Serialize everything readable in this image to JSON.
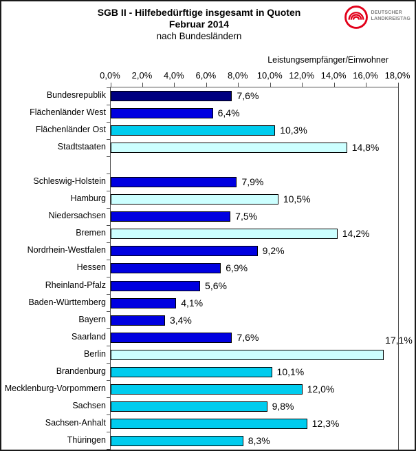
{
  "logo": {
    "line1": "DEUTSCHER",
    "line2": "LANDKREISTAG",
    "color": "#e2001a"
  },
  "chart_data": {
    "type": "bar",
    "orientation": "horizontal",
    "title": "SGB II - Hilfebedürftige insgesamt in Quoten",
    "subtitle": "Februar 2014",
    "subtitle2": "nach Bundesländern",
    "axis_label": "Leistungsempfänger/Einwohner",
    "x_ticks": [
      "0,0%",
      "2,0%",
      "4,0%",
      "6,0%",
      "8,0%",
      "10,0%",
      "12,0%",
      "14,0%",
      "16,0%",
      "18,0%"
    ],
    "xlim": [
      0,
      18
    ],
    "grid": false,
    "legend": "none",
    "colors": {
      "federal": "#000080",
      "west": "#0000e0",
      "east": "#00ccee",
      "city": "#ccffff"
    },
    "bars": [
      {
        "label": "Bundesrepublik",
        "value": 7.6,
        "display": "7,6%",
        "group": "federal"
      },
      {
        "label": "Flächenländer West",
        "value": 6.4,
        "display": "6,4%",
        "group": "west"
      },
      {
        "label": "Flächenländer Ost",
        "value": 10.3,
        "display": "10,3%",
        "group": "east"
      },
      {
        "label": "Stadtstaaten",
        "value": 14.8,
        "display": "14,8%",
        "group": "city"
      },
      {
        "spacer": true
      },
      {
        "label": "Schleswig-Holstein",
        "value": 7.9,
        "display": "7,9%",
        "group": "west"
      },
      {
        "label": "Hamburg",
        "value": 10.5,
        "display": "10,5%",
        "group": "city"
      },
      {
        "label": "Niedersachsen",
        "value": 7.5,
        "display": "7,5%",
        "group": "west"
      },
      {
        "label": "Bremen",
        "value": 14.2,
        "display": "14,2%",
        "group": "city"
      },
      {
        "label": "Nordrhein-Westfalen",
        "value": 9.2,
        "display": "9,2%",
        "group": "west"
      },
      {
        "label": "Hessen",
        "value": 6.9,
        "display": "6,9%",
        "group": "west"
      },
      {
        "label": "Rheinland-Pfalz",
        "value": 5.6,
        "display": "5,6%",
        "group": "west"
      },
      {
        "label": "Baden-Württemberg",
        "value": 4.1,
        "display": "4,1%",
        "group": "west"
      },
      {
        "label": "Bayern",
        "value": 3.4,
        "display": "3,4%",
        "group": "west"
      },
      {
        "label": "Saarland",
        "value": 7.6,
        "display": "7,6%",
        "group": "west"
      },
      {
        "label": "Berlin",
        "value": 17.1,
        "display": "17,1%",
        "group": "city",
        "label_position": "above"
      },
      {
        "label": "Brandenburg",
        "value": 10.1,
        "display": "10,1%",
        "group": "east"
      },
      {
        "label": "Mecklenburg-Vorpommern",
        "value": 12.0,
        "display": "12,0%",
        "group": "east"
      },
      {
        "label": "Sachsen",
        "value": 9.8,
        "display": "9,8%",
        "group": "east"
      },
      {
        "label": "Sachsen-Anhalt",
        "value": 12.3,
        "display": "12,3%",
        "group": "east"
      },
      {
        "label": "Thüringen",
        "value": 8.3,
        "display": "8,3%",
        "group": "east"
      }
    ]
  }
}
